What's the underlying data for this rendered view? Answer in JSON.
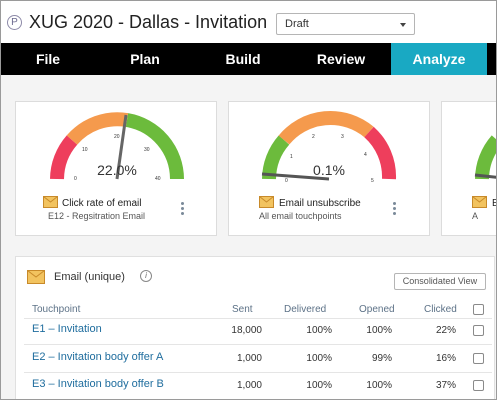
{
  "app": {
    "logo": "P",
    "title": "XUG 2020 - Dallas - Invitation",
    "status": "Draft"
  },
  "nav": [
    {
      "label": "File"
    },
    {
      "label": "Plan"
    },
    {
      "label": "Build"
    },
    {
      "label": "Review"
    },
    {
      "label": "Analyze",
      "active": true
    }
  ],
  "cards": [
    {
      "value": "22.0%",
      "label": "Click rate of email",
      "sub": "E12 - Regsitration Email",
      "ticks": [
        "0",
        "10",
        "20",
        "30",
        "40"
      ],
      "needle_fraction": 0.55,
      "icon": "envelope-icon"
    },
    {
      "value": "0.1%",
      "label": "Email unsubscribe",
      "sub": "All email touchpoints",
      "ticks": [
        "0",
        "1",
        "2",
        "3",
        "4",
        "5"
      ],
      "needle_fraction": 0.02,
      "icon": "envelope-icon"
    },
    {
      "value": "",
      "label": "E",
      "sub": "A",
      "ticks": [],
      "needle_fraction": 0.5,
      "icon": "envelope-icon"
    }
  ],
  "email_panel": {
    "title": "Email (unique)",
    "info": "i",
    "consolidated_label": "Consolidated View",
    "columns": [
      "Touchpoint",
      "Sent",
      "Delivered",
      "Opened",
      "Clicked"
    ],
    "rows": [
      {
        "touchpoint": "E1 – Invitation",
        "sent": "18,000",
        "delivered": "100%",
        "opened": "100%",
        "clicked": "22%"
      },
      {
        "touchpoint": "E2 – Invitation body offer A",
        "sent": "1,000",
        "delivered": "100%",
        "opened": "99%",
        "clicked": "16%"
      },
      {
        "touchpoint": "E3 – Invitation body offer B",
        "sent": "1,000",
        "delivered": "100%",
        "opened": "100%",
        "clicked": "37%"
      }
    ]
  },
  "colors": {
    "red": "#ee3e5c",
    "orange": "#f59a4d",
    "green": "#6cbb3c",
    "accent": "#19a9c3"
  }
}
